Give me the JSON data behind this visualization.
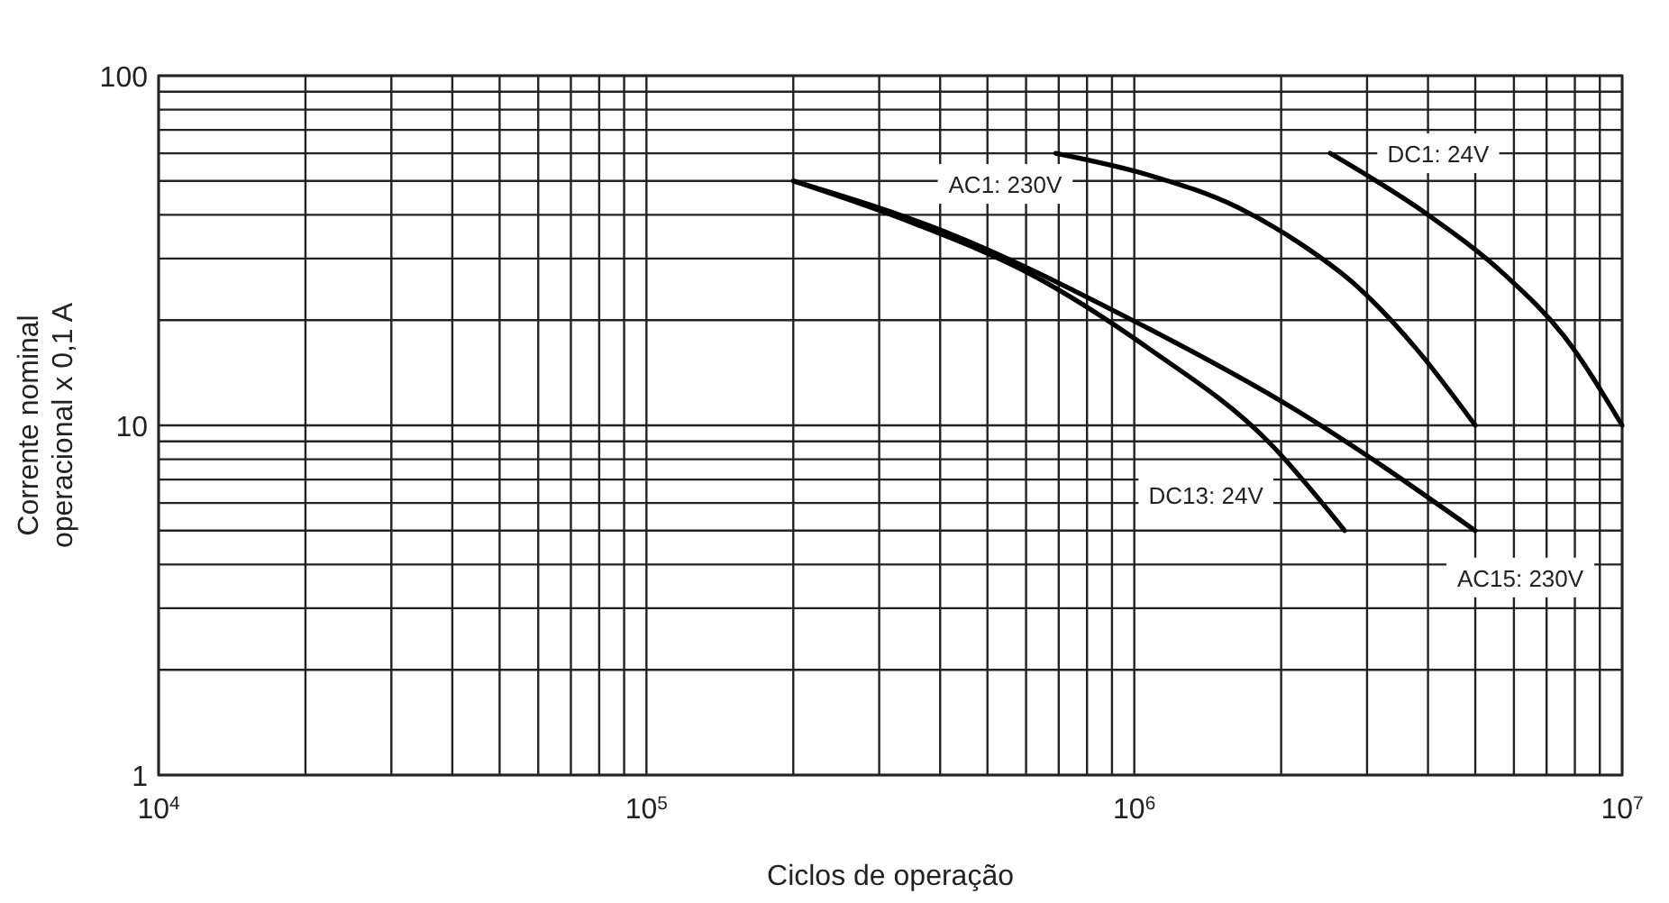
{
  "chart_data": {
    "type": "line",
    "xlabel": "Ciclos de operação",
    "ylabel": "Corrente nominal\noperacional x 0,1 A",
    "log": "xy",
    "grid": true,
    "line_style": "solid",
    "xlim": [
      10000,
      10000000
    ],
    "ylim": [
      1,
      100
    ],
    "xticks": [
      {
        "value": 10000,
        "label": "10$^{4}$"
      },
      {
        "value": 20000,
        "label": null
      },
      {
        "value": 30000,
        "label": null
      },
      {
        "value": 40000,
        "label": null
      },
      {
        "value": 50000,
        "label": null
      },
      {
        "value": 60000,
        "label": null
      },
      {
        "value": 70000,
        "label": null
      },
      {
        "value": 80000,
        "label": null
      },
      {
        "value": 90000,
        "label": null
      },
      {
        "value": 100000,
        "label": "10$^{5}$"
      },
      {
        "value": 200000,
        "label": null
      },
      {
        "value": 300000,
        "label": null
      },
      {
        "value": 400000,
        "label": null
      },
      {
        "value": 500000,
        "label": null
      },
      {
        "value": 600000,
        "label": null
      },
      {
        "value": 700000,
        "label": null
      },
      {
        "value": 800000,
        "label": null
      },
      {
        "value": 900000,
        "label": null
      },
      {
        "value": 1000000,
        "label": "10$^{6}$"
      },
      {
        "value": 2000000,
        "label": null
      },
      {
        "value": 3000000,
        "label": null
      },
      {
        "value": 4000000,
        "label": null
      },
      {
        "value": 5000000,
        "label": null
      },
      {
        "value": 6000000,
        "label": null
      },
      {
        "value": 7000000,
        "label": null
      },
      {
        "value": 8000000,
        "label": null
      },
      {
        "value": 9000000,
        "label": null
      },
      {
        "value": 10000000,
        "label": "10$^{7}$"
      }
    ],
    "yticks": [
      1,
      {
        "value": 2,
        "label": null
      },
      {
        "value": 3,
        "label": null
      },
      {
        "value": 4,
        "label": null
      },
      {
        "value": 5,
        "label": null
      },
      {
        "value": 6,
        "label": null
      },
      {
        "value": 7,
        "label": null
      },
      {
        "value": 8,
        "label": null
      },
      {
        "value": 9,
        "label": null
      },
      10,
      {
        "value": 20,
        "label": null
      },
      {
        "value": 30,
        "label": null
      },
      {
        "value": 40,
        "label": null
      },
      {
        "value": 50,
        "label": null
      },
      {
        "value": 60,
        "label": null
      },
      {
        "value": 70,
        "label": null
      },
      {
        "value": 80,
        "label": null
      },
      {
        "value": 90,
        "label": null
      },
      100
    ],
    "series": [
      {
        "name": "AC1: 230V",
        "color": "#000000",
        "x": [
          690000,
          1070000,
          1630000,
          2160000,
          2860000,
          3780000,
          5000000
        ],
        "values": [
          60,
          52,
          42,
          33.5,
          25,
          16.6,
          10
        ]
      },
      {
        "name": "DC1: 24V",
        "color": "#000000",
        "x": [
          2520000,
          4000000,
          5740000,
          7600000,
          10000000
        ],
        "values": [
          60,
          40,
          27,
          18,
          10
        ]
      },
      {
        "name": "AC15: 230V",
        "color": "#000000",
        "x": [
          200000,
          405000,
          990000,
          2160000,
          5000000
        ],
        "values": [
          50,
          36,
          20,
          11,
          5
        ]
      },
      {
        "name": "DC13: 24V",
        "color": "#000000",
        "x": [
          200000,
          350000,
          615000,
          1070000,
          1880000,
          2700000
        ],
        "values": [
          50,
          38,
          27,
          16.6,
          9,
          5
        ]
      }
    ]
  }
}
